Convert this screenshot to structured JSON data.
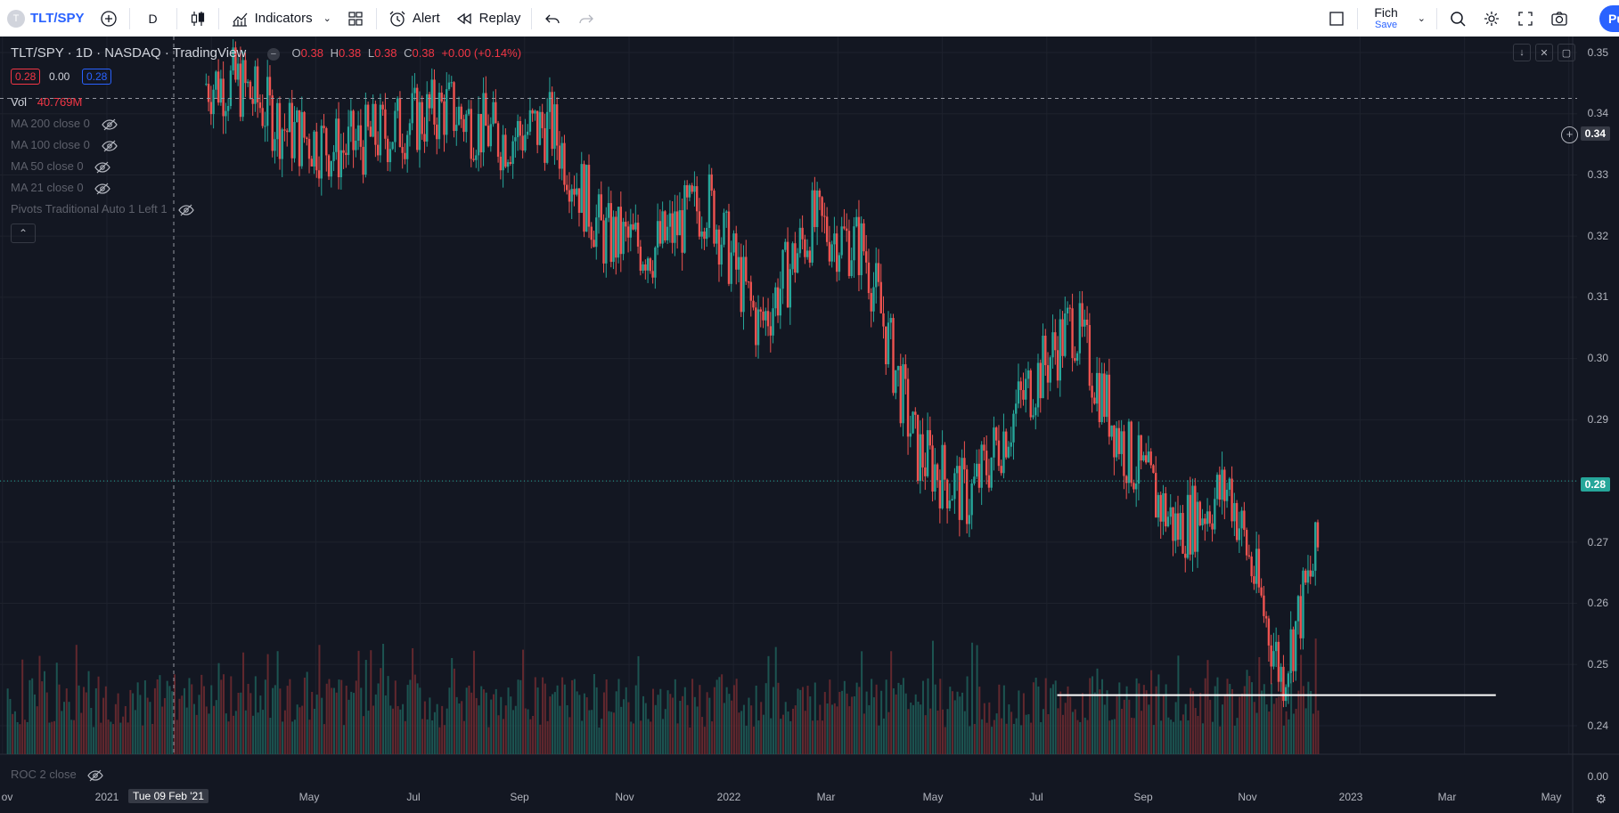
{
  "toolbar": {
    "symbol_badge": "T",
    "symbol": "TLT/SPY",
    "interval": "D",
    "indicators_label": "Indicators",
    "alert_label": "Alert",
    "replay_label": "Replay",
    "layout_name": "Fich",
    "layout_save": "Save",
    "account_pill": "Pu"
  },
  "legend": {
    "title": "TLT/SPY · 1D · NASDAQ · TradingView",
    "o_label": "O",
    "o": "0.38",
    "h_label": "H",
    "h": "0.38",
    "l_label": "L",
    "l": "0.38",
    "c_label": "C",
    "c": "0.38",
    "change": "+0.00 (+0.14%)",
    "box1": "0.28",
    "box2": "0.00",
    "box3": "0.28",
    "vol_label": "Vol",
    "vol_value": "40.769M",
    "indicators": [
      "MA 200 close 0",
      "MA 100 close 0",
      "MA 50 close 0",
      "MA 21 close 0",
      "Pivots Traditional Auto 1 Left 1"
    ],
    "roc": "ROC 2 close"
  },
  "price_axis": {
    "labels": [
      "0.35",
      "0.34",
      "0.33",
      "0.32",
      "0.31",
      "0.30",
      "0.29",
      "0.28",
      "0.27",
      "0.26",
      "0.25",
      "0.24",
      "0.00"
    ],
    "crosshair_value": "0.34",
    "last_price": "0.28"
  },
  "time_axis": {
    "labels": [
      "ov",
      "2021",
      "May",
      "Jul",
      "Sep",
      "Nov",
      "2022",
      "Mar",
      "May",
      "Jul",
      "Sep",
      "Nov",
      "2023",
      "Mar",
      "May"
    ],
    "crosshair_date": "Tue 09 Feb '21"
  },
  "chart_data": {
    "type": "candlestick",
    "symbol": "TLT/SPY",
    "interval": "1D",
    "ylim": [
      0.24,
      0.35
    ],
    "last_price": 0.28,
    "horizontal_line": 0.245,
    "ohlc_legend": {
      "open": 0.38,
      "high": 0.38,
      "low": 0.38,
      "close": 0.38
    },
    "trend_points": [
      {
        "x": "2021-03",
        "y": 0.345
      },
      {
        "x": "2021-04",
        "y": 0.337
      },
      {
        "x": "2021-05",
        "y": 0.334
      },
      {
        "x": "2021-07",
        "y": 0.341
      },
      {
        "x": "2021-08",
        "y": 0.336
      },
      {
        "x": "2021-09",
        "y": 0.338
      },
      {
        "x": "2021-10",
        "y": 0.32
      },
      {
        "x": "2021-11",
        "y": 0.318
      },
      {
        "x": "2021-12",
        "y": 0.326
      },
      {
        "x": "2022-01",
        "y": 0.305
      },
      {
        "x": "2022-02",
        "y": 0.322
      },
      {
        "x": "2022-03",
        "y": 0.318
      },
      {
        "x": "2022-04",
        "y": 0.285
      },
      {
        "x": "2022-05",
        "y": 0.277
      },
      {
        "x": "2022-06",
        "y": 0.293
      },
      {
        "x": "2022-07",
        "y": 0.306
      },
      {
        "x": "2022-08",
        "y": 0.285
      },
      {
        "x": "2022-09",
        "y": 0.272
      },
      {
        "x": "2022-10",
        "y": 0.279
      },
      {
        "x": "2022-11",
        "y": 0.248
      },
      {
        "x": "2022-12",
        "y": 0.278
      }
    ]
  },
  "colors": {
    "background": "#131722",
    "up": "#26a69a",
    "down": "#ef5350",
    "grid": "#1e222d",
    "accent": "#2962ff"
  }
}
